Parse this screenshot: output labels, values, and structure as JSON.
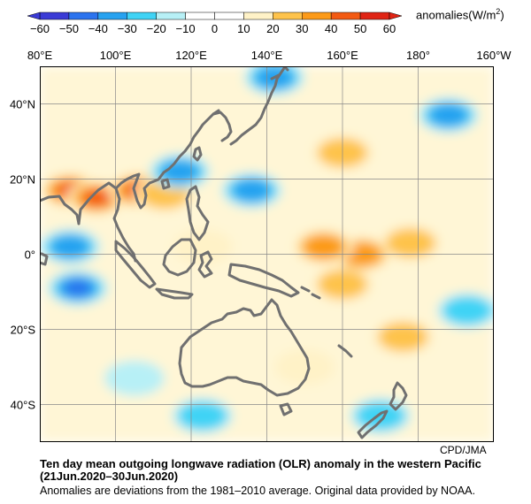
{
  "legend": {
    "ticks": [
      "−60",
      "−50",
      "−40",
      "−30",
      "−20",
      "−10",
      "0",
      "10",
      "20",
      "30",
      "40",
      "50",
      "60"
    ],
    "bin_colors": [
      "#3b3bd6",
      "#2b73ee",
      "#27a2f0",
      "#3fd3f5",
      "#b7f0f6",
      "#ffffff",
      "#ffffff",
      "#fff2c7",
      "#fec34b",
      "#fc9a18",
      "#f35a12",
      "#e02414"
    ],
    "unit_prefix": "anomalies(W/m",
    "unit_sup": "2",
    "unit_suffix": ")"
  },
  "axes": {
    "lon_labels": [
      "80°E",
      "100°E",
      "120°E",
      "140°E",
      "160°E",
      "180°",
      "160°W"
    ],
    "lat_labels": [
      "40°N",
      "20°N",
      "0°",
      "20°S",
      "40°S"
    ]
  },
  "map": {
    "region": "western Pacific",
    "lon_range": [
      80,
      200
    ],
    "lat_range": [
      -50,
      50
    ],
    "ocean_color": "#ffffff",
    "coast_color": "#707070",
    "anomaly_patches": [
      {
        "lon": 88,
        "lat": 17,
        "value": 45
      },
      {
        "lon": 95,
        "lat": 15,
        "value": 40
      },
      {
        "lon": 106,
        "lat": 17,
        "value": 40
      },
      {
        "lon": 113,
        "lat": 16,
        "value": 25
      },
      {
        "lon": 165,
        "lat": 0,
        "value": 35
      },
      {
        "lon": 155,
        "lat": 2,
        "value": 30
      },
      {
        "lon": 178,
        "lat": 3,
        "value": 25
      },
      {
        "lon": 160,
        "lat": -8,
        "value": 25
      },
      {
        "lon": 160,
        "lat": 27,
        "value": 20
      },
      {
        "lon": 176,
        "lat": -22,
        "value": 20
      },
      {
        "lon": 123,
        "lat": 2,
        "value": 15
      },
      {
        "lon": 150,
        "lat": -30,
        "value": 10
      },
      {
        "lon": 88,
        "lat": 2,
        "value": -30
      },
      {
        "lon": 90,
        "lat": -9,
        "value": -45
      },
      {
        "lon": 117,
        "lat": 22,
        "value": -35
      },
      {
        "lon": 136,
        "lat": 17,
        "value": -30
      },
      {
        "lon": 188,
        "lat": 37,
        "value": -30
      },
      {
        "lon": 142,
        "lat": 47,
        "value": -30
      },
      {
        "lon": 193,
        "lat": -15,
        "value": -25
      },
      {
        "lon": 123,
        "lat": -43,
        "value": -25
      },
      {
        "lon": 170,
        "lat": -43,
        "value": -20
      },
      {
        "lon": 105,
        "lat": -33,
        "value": -15
      }
    ]
  },
  "credit": "CPD/JMA",
  "title": "Ten day mean outgoing longwave radiation (OLR) anomaly in the western Pacific",
  "period": "(21Jun.2020–30Jun.2020)",
  "note": "Anomalies are deviations from the 1981–2010 average. Original data provided by NOAA."
}
